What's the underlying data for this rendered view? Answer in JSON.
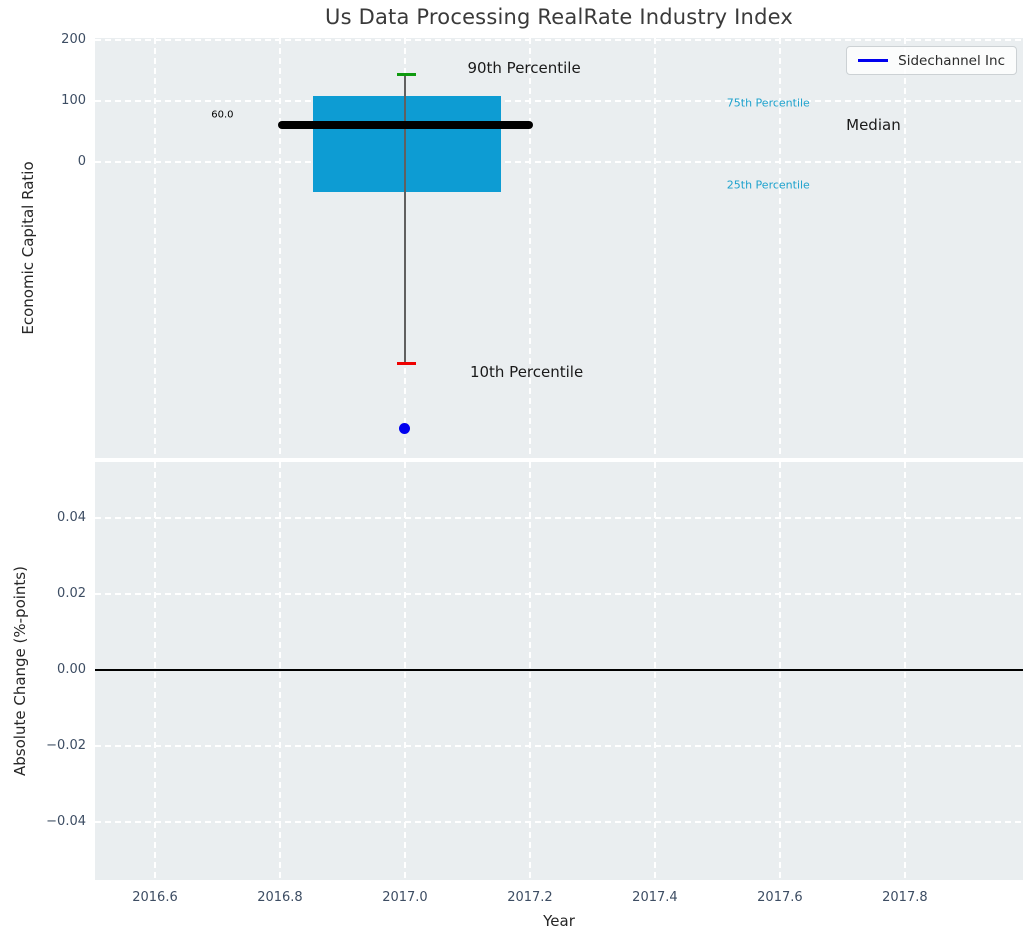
{
  "title": "Us Data Processing RealRate Industry Index",
  "colors": {
    "axes_background": "#eaeef0",
    "grid": "#ffffff",
    "tick_label": "#3d4d63",
    "box_fill": "#0d9cd3",
    "median_line": "#000000",
    "whisker": "#606060",
    "p90_cap": "#0f9a0f",
    "p10_cap": "#ee0000",
    "company_point": "#0000ee",
    "percentile_label": "#1da2cd",
    "annotation_text": "#1a1a1a",
    "title_text": "#3a3a3a"
  },
  "chart_data": [
    {
      "type": "boxplot",
      "subplot": "top",
      "title": "Us Data Processing RealRate Industry Index",
      "ylabel": "Economic Capital Ratio",
      "xlim": [
        2016.504,
        2017.989
      ],
      "ylim": [
        -485,
        203
      ],
      "grid": true,
      "yticks": [
        {
          "v": 0,
          "label": "0"
        },
        {
          "v": 100,
          "label": "100"
        },
        {
          "v": 200,
          "label": "200"
        }
      ],
      "series": [
        {
          "name": "industry-distribution-box",
          "x": 2017.0,
          "p90": 143,
          "p75": 108,
          "median": 60.0,
          "p25": -49,
          "p10": -330,
          "box_x_range": [
            2016.853,
            2017.154
          ],
          "median_x_range": [
            2016.797,
            2017.205
          ],
          "cap_x_range": [
            2016.987,
            2017.018
          ]
        },
        {
          "name": "Sidechannel Inc",
          "type": "point",
          "x": 2017.0,
          "y": -436
        }
      ],
      "annotations": [
        {
          "id": "p90-label",
          "text": "90th Percentile",
          "x": 2017.1,
          "y": 154,
          "size": "large",
          "color": "#1a1a1a"
        },
        {
          "id": "p10-label",
          "text": "10th Percentile",
          "x": 2017.104,
          "y": -344,
          "size": "large",
          "color": "#1a1a1a"
        },
        {
          "id": "p75-label",
          "text": "75th Percentile",
          "x": 2017.515,
          "y": 97,
          "size": "small",
          "color": "#1da2cd"
        },
        {
          "id": "p25-label",
          "text": "25th Percentile",
          "x": 2017.515,
          "y": -38,
          "size": "small",
          "color": "#1da2cd"
        },
        {
          "id": "median-label",
          "text": "Median",
          "x": 2017.706,
          "y": 60,
          "size": "large",
          "color": "#1a1a1a"
        },
        {
          "id": "median-value-label",
          "text": "60.0",
          "x": 2016.69,
          "y": 77,
          "size": "xsmall",
          "color": "#000000"
        }
      ],
      "legend": {
        "position": "upper right",
        "entries": [
          {
            "label": "Sidechannel Inc",
            "line_color": "#0000ee"
          }
        ]
      }
    },
    {
      "type": "line",
      "subplot": "bottom",
      "xlabel": "Year",
      "ylabel": "Absolute Change (%-points)",
      "xlim": [
        2016.504,
        2017.989
      ],
      "ylim": [
        -0.0553,
        0.0547
      ],
      "grid": true,
      "zero_line": 0.0,
      "xticks": [
        {
          "v": 2016.6,
          "label": "2016.6"
        },
        {
          "v": 2016.8,
          "label": "2016.8"
        },
        {
          "v": 2017.0,
          "label": "2017.0"
        },
        {
          "v": 2017.2,
          "label": "2017.2"
        },
        {
          "v": 2017.4,
          "label": "2017.4"
        },
        {
          "v": 2017.6,
          "label": "2017.6"
        },
        {
          "v": 2017.8,
          "label": "2017.8"
        }
      ],
      "yticks": [
        {
          "v": 0.04,
          "label": "0.04"
        },
        {
          "v": 0.02,
          "label": "0.02"
        },
        {
          "v": 0.0,
          "label": "0.00"
        },
        {
          "v": -0.02,
          "label": "−0.02"
        },
        {
          "v": -0.04,
          "label": "−0.04"
        }
      ],
      "series": []
    }
  ]
}
